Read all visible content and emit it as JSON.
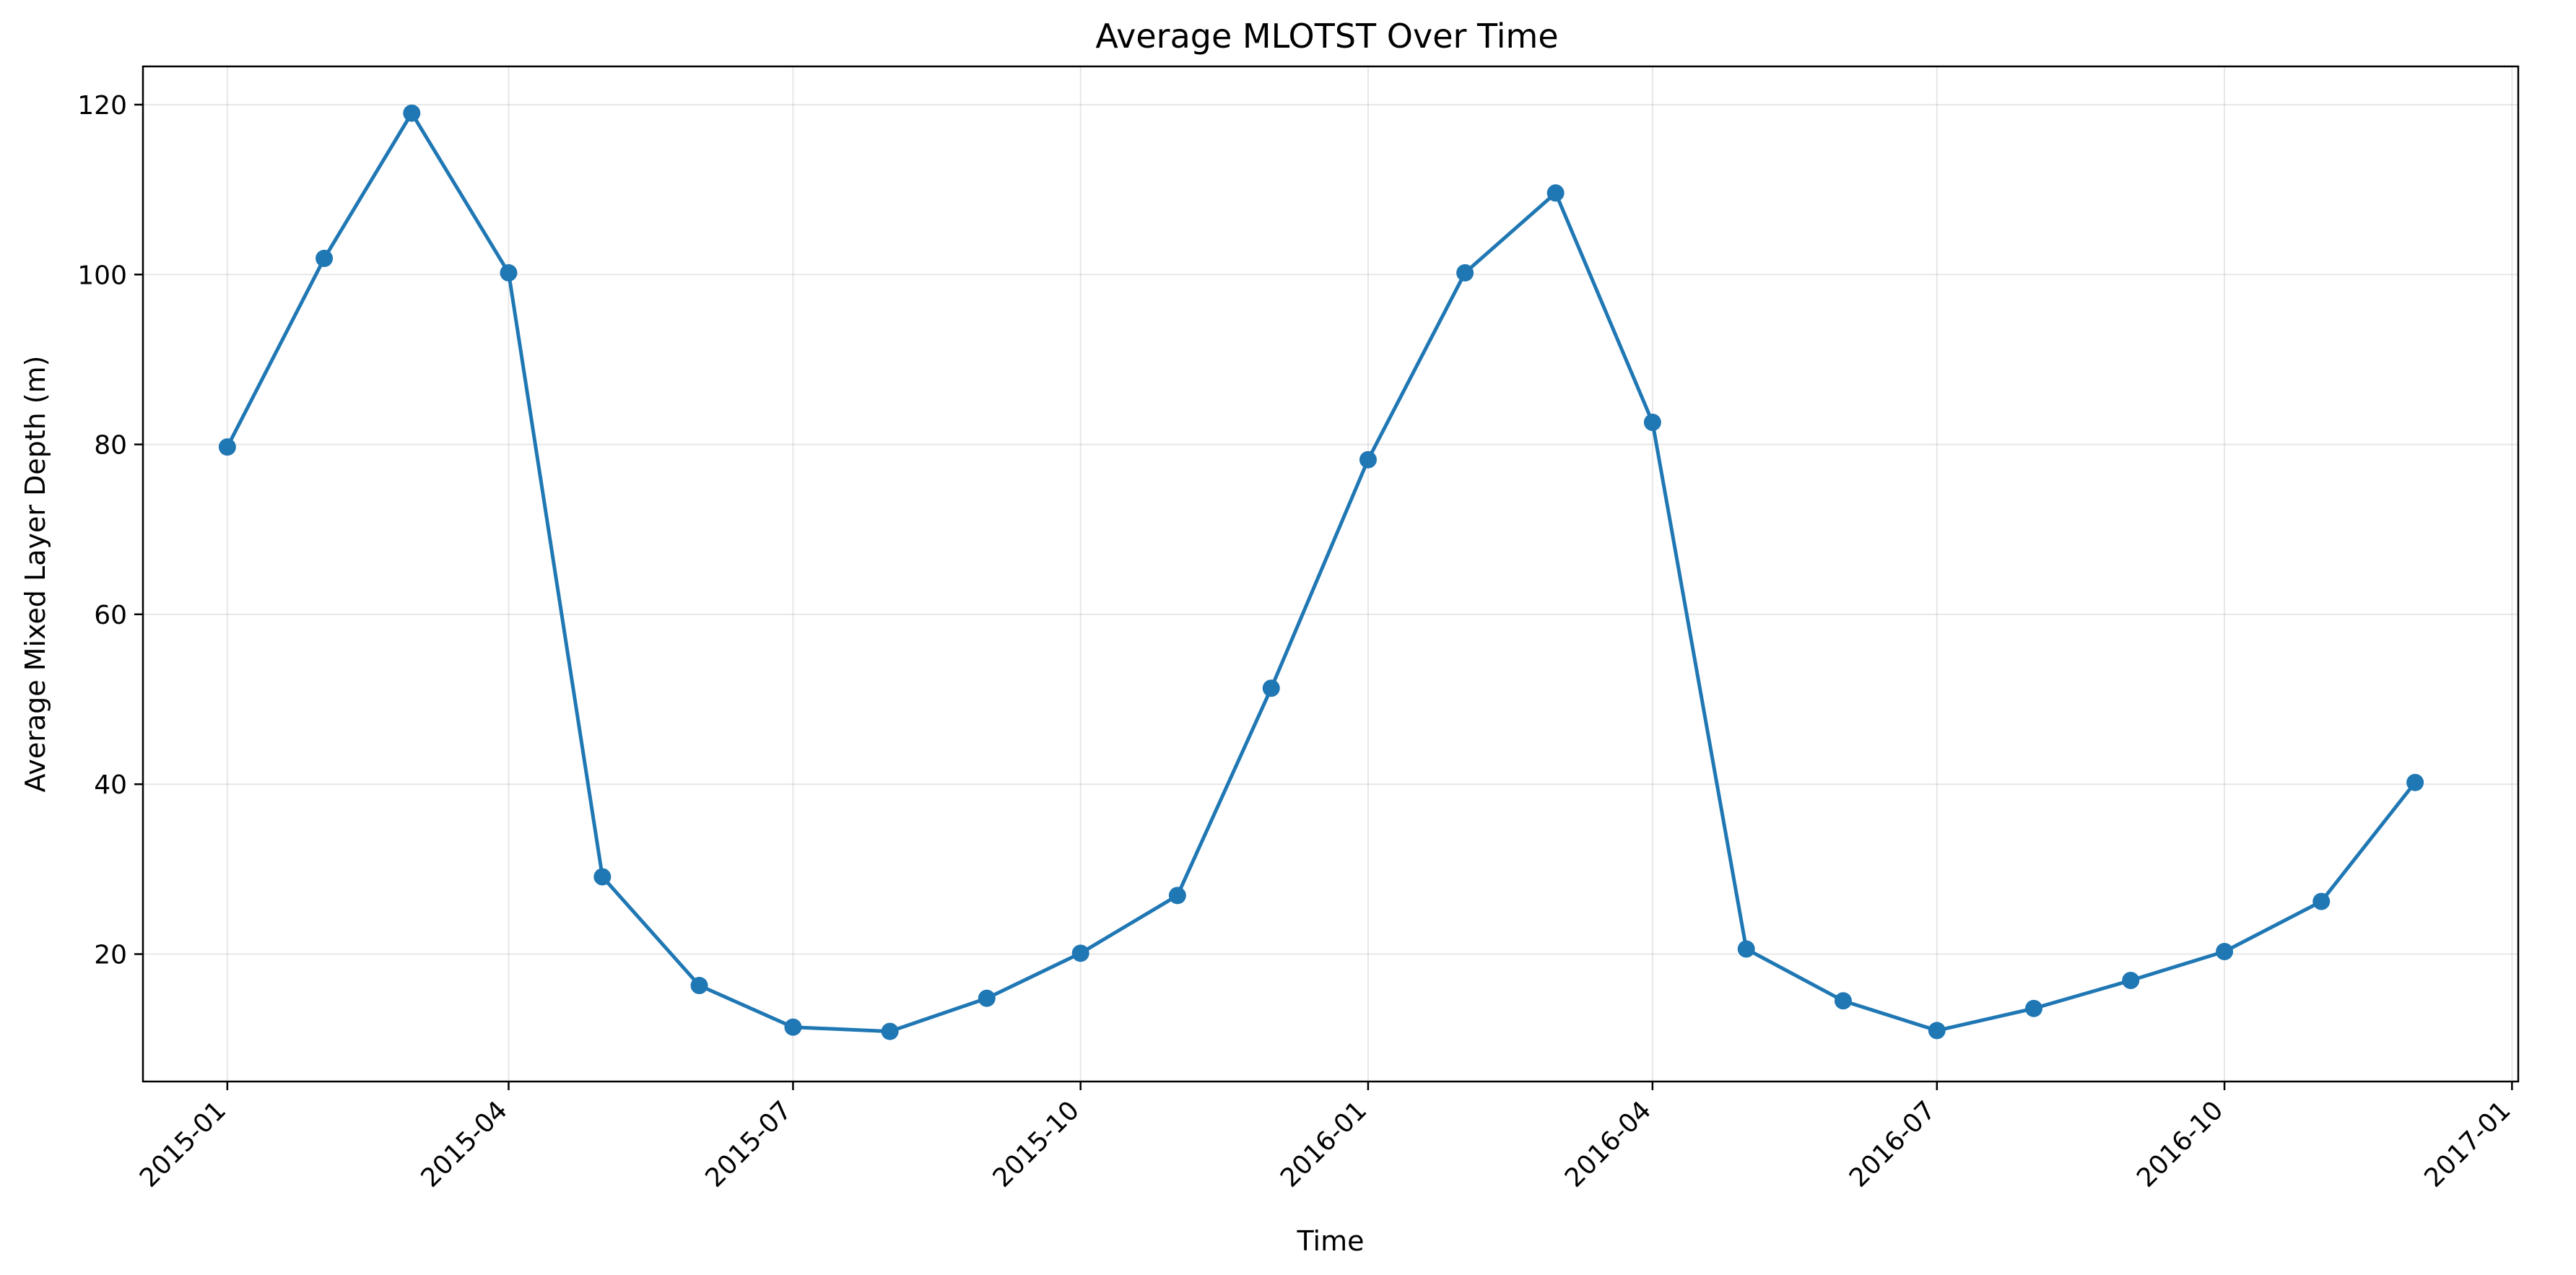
{
  "chart_data": {
    "type": "line",
    "title": "Average MLOTST Over Time",
    "xlabel": "Time",
    "ylabel": "Average Mixed Layer Depth (m)",
    "x": [
      "2015-01-01",
      "2015-02-01",
      "2015-03-01",
      "2015-04-01",
      "2015-05-01",
      "2015-06-01",
      "2015-07-01",
      "2015-08-01",
      "2015-09-01",
      "2015-10-01",
      "2015-11-01",
      "2015-12-01",
      "2016-01-01",
      "2016-02-01",
      "2016-03-01",
      "2016-04-01",
      "2016-05-01",
      "2016-06-01",
      "2016-07-01",
      "2016-08-01",
      "2016-09-01",
      "2016-10-01",
      "2016-11-01",
      "2016-12-01"
    ],
    "series": [
      {
        "values": [
          79.7,
          101.9,
          119.0,
          100.2,
          29.1,
          16.3,
          11.4,
          10.9,
          14.8,
          20.1,
          26.9,
          51.3,
          78.2,
          100.2,
          109.6,
          82.6,
          20.6,
          14.5,
          11.0,
          13.6,
          16.9,
          20.3,
          26.2,
          40.2
        ],
        "color": "#1f77b4",
        "marker": "circle"
      }
    ],
    "xlim": [
      "2014-12-05",
      "2017-01-03"
    ],
    "ylim": [
      5,
      124.5
    ],
    "x_ticks": [
      "2015-01-01",
      "2015-04-01",
      "2015-07-01",
      "2015-10-01",
      "2016-01-01",
      "2016-04-01",
      "2016-07-01",
      "2016-10-01",
      "2017-01-01"
    ],
    "x_tick_labels": [
      "2015-01",
      "2015-04",
      "2015-07",
      "2015-10",
      "2016-01",
      "2016-04",
      "2016-07",
      "2016-10",
      "2017-01"
    ],
    "y_ticks": [
      20,
      40,
      60,
      80,
      100,
      120
    ],
    "y_tick_labels": [
      "20",
      "40",
      "60",
      "80",
      "100",
      "120"
    ],
    "grid": true,
    "legend": "none"
  }
}
